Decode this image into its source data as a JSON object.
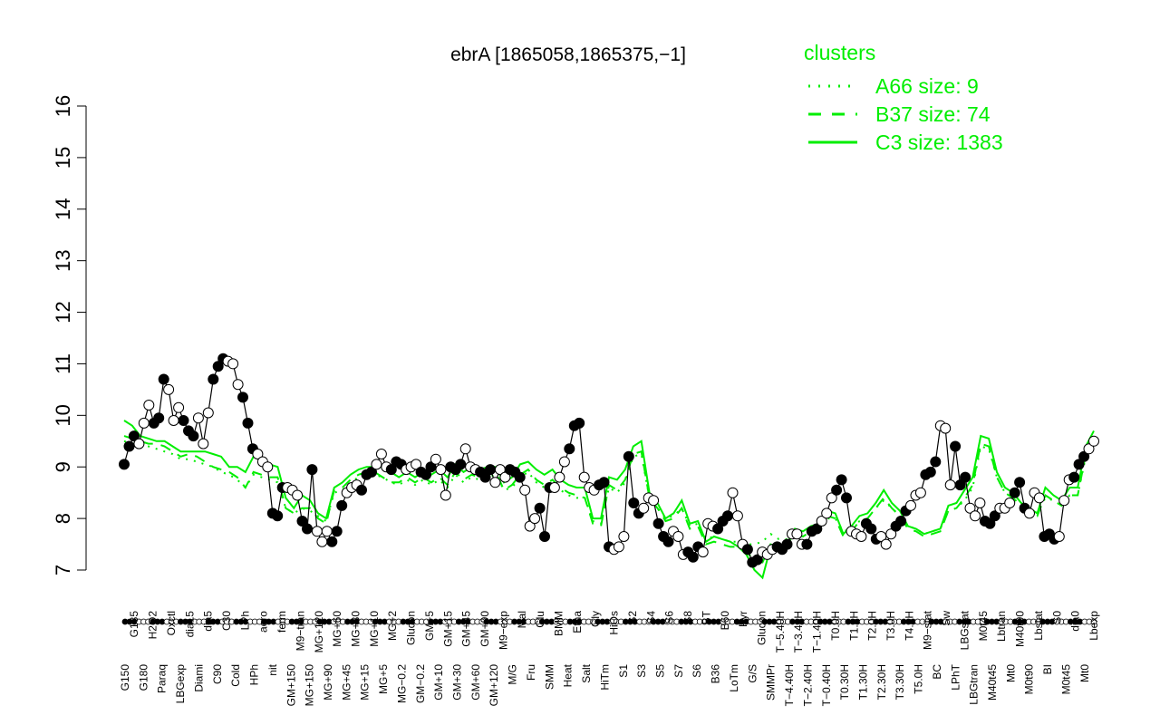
{
  "chart_data": {
    "type": "line",
    "title": "ebrA [1865058,1865375,−1]",
    "xlabel": "",
    "ylabel": "",
    "ylim": [
      7,
      16
    ],
    "yticks": [
      7,
      8,
      9,
      10,
      11,
      12,
      13,
      14,
      15,
      16
    ],
    "colors": {
      "axis": "#000000",
      "cluster_line": "#00ee00",
      "point_fill_open": "#ffffff",
      "point_fill_solid": "#000000"
    },
    "legend": {
      "title": "clusters",
      "position": "top-right",
      "entries": [
        {
          "label": "A66 size: 9",
          "style": "dotted"
        },
        {
          "label": "B37 size: 74",
          "style": "dashed"
        },
        {
          "label": "C3 size: 1383",
          "style": "solid"
        }
      ]
    },
    "x_tick_labels": [
      "G150",
      "G135",
      "G180",
      "H2O2",
      "Paraq",
      "Oxctl",
      "LBGexp",
      "dia15",
      "Diami",
      "dia5",
      "C90",
      "C30",
      "Cold",
      "LPh",
      "HPh",
      "aero",
      "nit",
      "ferm",
      "GM+150",
      "M9−tran",
      "MG+150",
      "MG+120",
      "MG+90",
      "MG+60",
      "MG+45",
      "MG+30",
      "MG+15",
      "MG+10",
      "MG+5",
      "MG+2",
      "MG−0.2",
      "Glucon",
      "GM−0.2",
      "GM+5",
      "GM+10",
      "GM+15",
      "GM+30",
      "GM+45",
      "GM+60",
      "GM+90",
      "GM+120",
      "M9−exp",
      "M/G",
      "Mal",
      "Fru",
      "Glu",
      "SMM",
      "BMM",
      "Heat",
      "Etha",
      "Salt",
      "Gly",
      "HiTm",
      "HiOs",
      "S1",
      "S2",
      "S3",
      "S4",
      "S5",
      "S6",
      "S7",
      "S8",
      "S6",
      "BT",
      "B36",
      "B60",
      "LoTm",
      "Pyr",
      "G/S",
      "Glucon",
      "SMMPr",
      "T−5.40H",
      "T−4.40H",
      "T−3.40H",
      "T−2.40H",
      "T−1.40H",
      "T−0.40H",
      "T0.0H",
      "T0.30H",
      "T1.0H",
      "T1.30H",
      "T2.0H",
      "T2.30H",
      "T3.0H",
      "T3.30H",
      "T4.0H",
      "T5.0H",
      "M9−stat",
      "BC",
      "Sw",
      "LPhT",
      "LBGstat",
      "LBGtran",
      "M0t45",
      "M40t45",
      "Lbtran",
      "Mt0",
      "M40t90",
      "M0t90",
      "Lbstat",
      "BI",
      "S0",
      "M0t45",
      "dia0",
      "Mt0",
      "Lbexp"
    ],
    "series": [
      {
        "values": [
          9.05,
          9.4,
          9.6,
          9.45,
          9.85,
          10.2,
          9.85,
          9.95,
          10.7,
          10.5,
          9.9,
          10.15,
          9.9,
          9.7,
          9.6,
          9.95,
          9.45,
          10.05,
          10.7,
          10.95,
          11.1,
          11.05,
          11.0,
          10.6,
          10.35,
          9.85,
          9.35,
          9.25,
          9.1,
          9.0,
          8.1,
          8.05,
          8.6,
          8.6,
          8.55,
          8.45,
          7.95,
          7.8,
          8.95,
          7.75,
          7.55,
          7.75,
          7.55,
          7.75,
          8.25,
          8.5,
          8.6,
          8.65,
          8.55,
          8.85,
          8.9,
          9.05,
          9.25,
          9.0,
          8.95,
          9.1,
          9.05,
          8.95,
          9.0,
          9.05,
          8.9,
          8.85,
          9.0,
          9.15,
          8.95,
          8.45,
          9.0,
          8.95,
          9.05,
          9.35,
          9.0,
          8.95,
          8.9,
          8.8,
          8.95,
          8.7,
          8.95,
          8.8,
          8.95,
          8.9,
          8.8,
          8.55,
          7.85,
          8.0,
          8.2,
          7.65,
          8.6,
          8.6,
          8.8,
          9.1,
          9.35,
          9.8,
          9.85,
          8.8,
          8.6,
          8.55,
          8.65,
          8.7,
          7.45,
          7.4,
          7.45,
          7.65,
          9.2,
          8.3,
          8.1,
          8.2,
          8.4,
          8.35,
          7.9,
          7.65,
          7.55,
          7.75,
          7.65,
          7.3,
          7.35,
          7.25,
          7.45,
          7.35,
          7.9,
          7.85,
          7.8,
          7.95,
          8.05,
          8.5,
          8.05,
          7.5,
          7.4,
          7.15,
          7.2,
          7.35,
          7.3,
          7.4,
          7.45,
          7.4,
          7.5,
          7.7,
          7.7,
          7.5,
          7.5,
          7.75,
          7.8,
          7.95,
          8.1,
          8.4,
          8.55,
          8.75,
          8.4,
          7.75,
          7.7,
          7.65,
          7.9,
          7.8,
          7.6,
          7.65,
          7.5,
          7.7,
          7.85,
          7.95,
          8.15,
          8.25,
          8.45,
          8.5,
          8.85,
          8.9,
          9.1,
          9.8,
          9.75,
          8.65,
          9.4,
          8.65,
          8.8,
          8.2,
          8.05,
          8.3,
          7.95,
          7.9,
          8.05,
          8.2,
          8.2,
          8.3,
          8.5,
          8.7,
          8.2,
          8.1,
          8.5,
          8.4,
          7.65,
          7.7,
          7.6,
          7.65,
          8.35,
          8.75,
          8.8,
          9.05,
          9.2,
          9.35,
          9.5
        ]
      },
      {
        "name": "C3 size: 1383",
        "style": "solid",
        "values": [
          9.9,
          9.8,
          9.6,
          9.55,
          9.5,
          9.5,
          9.4,
          9.3,
          9.3,
          9.3,
          9.3,
          9.25,
          9.2,
          9.0,
          9.0,
          8.9,
          9.2,
          9.15,
          9.05,
          9.0,
          8.4,
          8.2,
          8.45,
          8.35,
          8.1,
          8.0,
          8.6,
          8.7,
          8.85,
          8.95,
          9.0,
          9.0,
          9.0,
          8.9,
          8.8,
          8.9,
          8.8,
          8.9,
          8.85,
          8.95,
          8.8,
          9.05,
          8.9,
          9.0,
          8.95,
          9.0,
          9.0,
          8.7,
          8.8,
          9.05,
          9.1,
          8.95,
          8.85,
          8.95,
          8.75,
          8.65,
          8.6,
          8.6,
          8.0,
          8.0,
          8.8,
          8.75,
          8.95,
          9.4,
          9.5,
          8.5,
          8.3,
          8.0,
          8.1,
          8.35,
          7.9,
          7.95,
          7.55,
          7.65,
          7.6,
          7.55,
          7.45,
          7.3,
          7.0,
          6.85,
          7.45,
          7.4,
          7.5,
          7.8,
          7.75,
          7.85,
          7.9,
          8.15,
          8.1,
          7.7,
          7.85,
          8.05,
          8.1,
          8.3,
          8.55,
          8.3,
          8.15,
          7.85,
          7.8,
          7.7,
          7.75,
          7.8,
          8.25,
          8.3,
          8.55,
          8.8,
          9.6,
          9.55,
          8.9,
          8.6,
          8.5,
          8.3,
          8.2,
          8.1,
          8.6,
          8.45,
          8.35,
          8.6,
          8.6,
          9.4,
          9.7
        ]
      },
      {
        "name": "B37 size: 74",
        "style": "dashed",
        "values": [
          9.6,
          9.55,
          9.5,
          9.45,
          9.45,
          9.4,
          9.3,
          9.2,
          9.25,
          9.2,
          9.1,
          9.0,
          8.95,
          8.9,
          8.8,
          8.6,
          8.9,
          8.85,
          8.8,
          8.8,
          8.2,
          8.1,
          8.2,
          8.2,
          8.0,
          7.9,
          8.55,
          8.6,
          8.75,
          8.85,
          8.9,
          8.9,
          8.8,
          8.7,
          8.7,
          8.8,
          8.7,
          8.8,
          8.7,
          8.8,
          8.65,
          8.9,
          8.75,
          8.85,
          8.8,
          8.85,
          8.9,
          8.55,
          8.65,
          8.85,
          8.95,
          8.75,
          8.65,
          8.75,
          8.6,
          8.5,
          8.45,
          8.4,
          7.9,
          7.85,
          8.65,
          8.55,
          8.75,
          9.25,
          9.3,
          8.4,
          8.2,
          7.95,
          8.0,
          8.2,
          7.8,
          7.85,
          7.5,
          7.55,
          7.5,
          7.45,
          7.45,
          7.35,
          7.2,
          7.15,
          7.5,
          7.45,
          7.5,
          7.7,
          7.65,
          7.75,
          7.8,
          8.05,
          8.0,
          7.65,
          7.75,
          7.95,
          8.0,
          8.2,
          8.4,
          8.2,
          8.05,
          7.8,
          7.75,
          7.65,
          7.7,
          7.75,
          8.15,
          8.2,
          8.4,
          8.65,
          9.45,
          9.4,
          8.8,
          8.5,
          8.4,
          8.2,
          8.15,
          8.05,
          8.45,
          8.35,
          8.25,
          8.45,
          8.45,
          9.25,
          9.5
        ]
      },
      {
        "name": "A66 size: 9",
        "style": "dotted",
        "values": [
          9.5,
          9.45,
          9.45,
          9.4,
          9.35,
          9.3,
          9.25,
          9.15,
          9.15,
          9.1,
          9.05,
          9.0,
          8.9,
          8.85,
          8.75,
          8.6,
          8.85,
          8.8,
          8.75,
          8.7,
          8.2,
          8.1,
          8.2,
          8.15,
          8.05,
          7.95,
          8.5,
          8.55,
          8.7,
          8.8,
          8.85,
          8.85,
          8.8,
          8.7,
          8.65,
          8.75,
          8.65,
          8.75,
          8.65,
          8.75,
          8.6,
          8.85,
          8.7,
          8.8,
          8.75,
          8.8,
          8.85,
          8.55,
          8.6,
          8.8,
          8.9,
          8.7,
          8.6,
          8.7,
          8.55,
          8.45,
          8.4,
          8.4,
          7.95,
          7.9,
          8.6,
          8.5,
          8.7,
          9.2,
          9.25,
          8.4,
          8.2,
          8.0,
          8.05,
          8.2,
          7.85,
          7.9,
          7.6,
          7.65,
          7.6,
          7.55,
          7.55,
          7.5,
          7.5,
          7.55,
          7.7,
          7.6,
          7.6,
          7.7,
          7.7,
          7.8,
          7.85,
          8.0,
          8.0,
          7.75,
          7.8,
          7.95,
          8.0,
          8.2,
          8.35,
          8.2,
          8.05,
          7.85,
          7.8,
          7.7,
          7.75,
          7.8,
          8.15,
          8.2,
          8.35,
          8.6,
          9.4,
          9.35,
          8.8,
          8.5,
          8.4,
          8.25,
          8.2,
          8.1,
          8.4,
          8.35,
          8.25,
          8.45,
          8.45,
          9.2,
          9.45
        ]
      }
    ]
  }
}
